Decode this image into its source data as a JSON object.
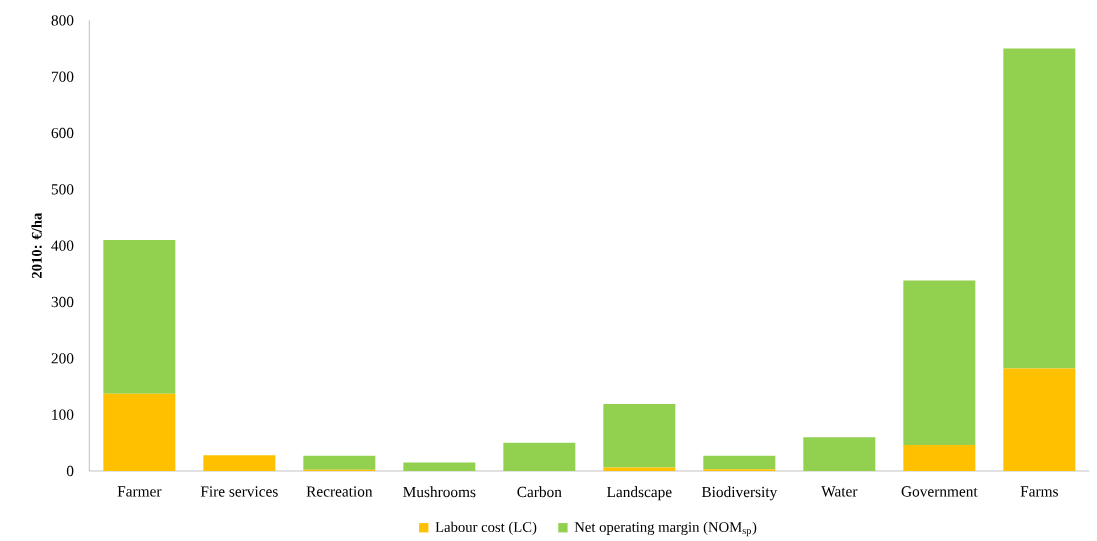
{
  "chart_data": {
    "type": "bar",
    "stacked": true,
    "ylabel": "2010: €/ha",
    "categories": [
      "Farmer",
      "Fire services",
      "Recreation",
      "Mushrooms",
      "Carbon",
      "Landscape",
      "Biodiversity",
      "Water",
      "Government",
      "Farms"
    ],
    "series": [
      {
        "name": "Labour cost (LC)",
        "color": "#ffc000",
        "values": [
          137,
          28,
          2,
          0,
          0,
          6,
          3,
          0,
          46,
          182
        ]
      },
      {
        "name": "Net operating margin (NOM$_{sp}$)",
        "color": "#92d050",
        "values": [
          273,
          null,
          25,
          15,
          50,
          113,
          24,
          60,
          292,
          568
        ]
      }
    ],
    "ylim": [
      0,
      800
    ],
    "yticks": [
      0,
      100,
      200,
      300,
      400,
      500,
      600,
      700,
      800
    ],
    "legend": "bottom",
    "grid": false
  }
}
